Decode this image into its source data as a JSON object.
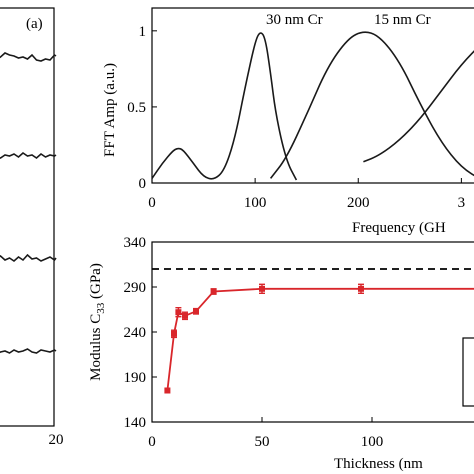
{
  "chart_data": [
    {
      "type": "line",
      "panel": "(a)",
      "x_ticks": [
        "20"
      ],
      "series": [
        {
          "x": [
            0,
            1.5,
            3,
            4.5,
            6,
            7.5,
            9,
            10.5,
            12,
            13.5,
            15,
            16.5,
            18,
            19.5,
            20
          ],
          "y": [
            0.2,
            0.5,
            0.9,
            0.7,
            0.6,
            0.4,
            0.5,
            0.3,
            0.7,
            0.2,
            0.1,
            0.3,
            0.2,
            0.7,
            0.6
          ]
        },
        {
          "x": [
            0,
            1.5,
            3,
            4.5,
            6,
            7.5,
            9,
            10.5,
            12,
            13.5,
            15,
            16.5,
            18,
            19.5,
            20
          ],
          "y": [
            0.3,
            0.2,
            0.5,
            0.4,
            0.6,
            0.3,
            0.7,
            0.4,
            0.5,
            0.2,
            0.6,
            0.3,
            0.5,
            0.4,
            0.5
          ]
        },
        {
          "x": [
            0,
            1.5,
            3,
            4.5,
            6,
            7.5,
            9,
            10.5,
            12,
            13.5,
            15,
            16.5,
            18,
            19.5,
            20
          ],
          "y": [
            0.5,
            0.8,
            0.4,
            0.6,
            0.3,
            0.7,
            0.4,
            0.9,
            0.5,
            0.6,
            0.3,
            0.5,
            0.7,
            0.4,
            0.6
          ]
        },
        {
          "x": [
            0,
            1.5,
            3,
            4.5,
            6,
            7.5,
            9,
            10.5,
            12,
            13.5,
            15,
            16.5,
            18,
            19.5,
            20
          ],
          "y": [
            0.2,
            0.4,
            0.5,
            0.3,
            0.6,
            0.4,
            0.5,
            0.7,
            0.4,
            0.3,
            0.6,
            0.5,
            0.4,
            0.6,
            0.5
          ]
        }
      ]
    },
    {
      "type": "line",
      "xlabel": "Frequency (GH",
      "ylabel": "FFT Amp (a.u.)",
      "xlim": [
        0,
        320
      ],
      "ylim": [
        0,
        1.15
      ],
      "x_ticks": [
        "0",
        "100",
        "200",
        "3"
      ],
      "y_ticks": [
        "0",
        "0.5",
        "1"
      ],
      "annotations": [
        "30 nm Cr",
        "15 nm Cr"
      ],
      "series": [
        {
          "x": [
            0,
            10,
            20,
            25,
            30,
            40,
            50,
            60,
            70,
            80,
            90,
            100,
            105,
            110,
            115,
            120,
            130,
            140
          ],
          "y": [
            0.03,
            0.13,
            0.21,
            0.23,
            0.22,
            0.13,
            0.04,
            0.02,
            0.08,
            0.28,
            0.62,
            0.93,
            1.0,
            0.95,
            0.72,
            0.45,
            0.15,
            0.02
          ]
        },
        {
          "x": [
            115,
            130,
            150,
            170,
            190,
            205,
            220,
            240,
            260,
            280,
            300,
            320
          ],
          "y": [
            0.03,
            0.16,
            0.45,
            0.76,
            0.95,
            1.0,
            0.97,
            0.8,
            0.52,
            0.27,
            0.1,
            0.02
          ]
        },
        {
          "x": [
            205,
            220,
            240,
            260,
            280,
            300,
            320
          ],
          "y": [
            0.14,
            0.18,
            0.28,
            0.42,
            0.6,
            0.78,
            0.92
          ]
        }
      ]
    },
    {
      "type": "line",
      "xlabel": "Thickness (nm",
      "ylabel": "Modulus C",
      "ylabel_subscript": "33",
      "ylabel_suffix": " (GPa)",
      "xlim": [
        0,
        150
      ],
      "ylim": [
        140,
        340
      ],
      "x_ticks": [
        "0",
        "50",
        "100"
      ],
      "y_ticks": [
        "140",
        "190",
        "240",
        "290",
        "340"
      ],
      "reference_line": {
        "y": 310,
        "style": "dashed",
        "color": "#000000"
      },
      "series": [
        {
          "color": "#d9262b",
          "x": [
            7,
            10,
            12,
            15,
            20,
            28,
            50,
            95,
            150
          ],
          "y": [
            175,
            238,
            262,
            258,
            263,
            285,
            288,
            288,
            288
          ],
          "err": [
            0,
            4,
            5,
            4,
            3,
            3,
            5,
            5,
            0
          ]
        }
      ]
    }
  ]
}
